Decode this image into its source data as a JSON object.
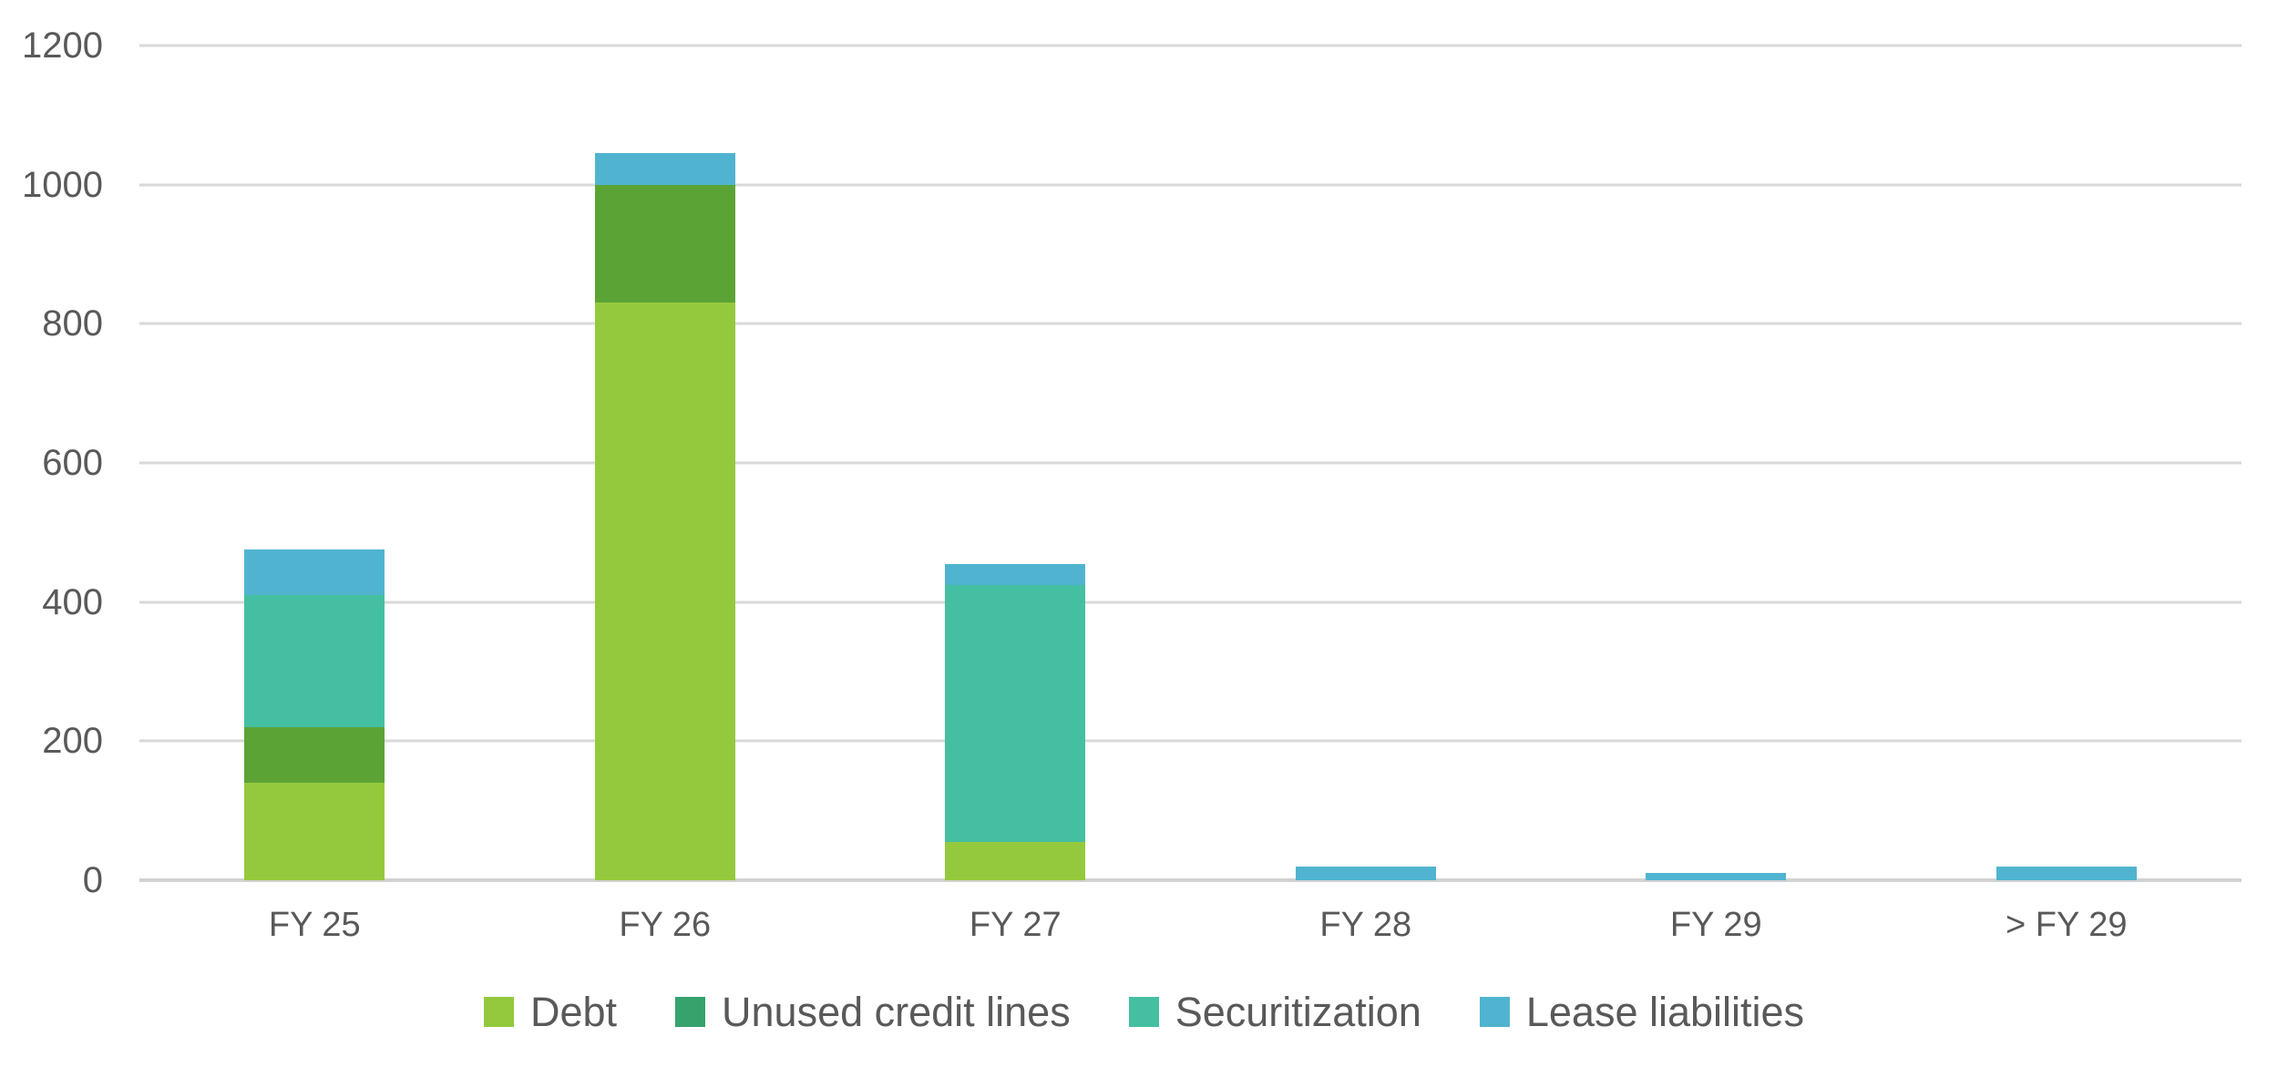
{
  "chart_data": {
    "type": "bar",
    "stacked": true,
    "title": "",
    "xlabel": "",
    "ylabel": "",
    "categories": [
      "FY 25",
      "FY 26",
      "FY 27",
      "FY 28",
      "FY 29",
      "> FY 29"
    ],
    "series": [
      {
        "name": "Debt",
        "color": "#95C93D",
        "legend_color": "#95C93D",
        "values": [
          140,
          830,
          55,
          0,
          0,
          0
        ]
      },
      {
        "name": "Unused credit lines",
        "color": "#5CA336",
        "legend_color": "#36A26C",
        "values": [
          80,
          170,
          0,
          0,
          0,
          0
        ]
      },
      {
        "name": "Securitization",
        "color": "#45BFA1",
        "legend_color": "#45BFA1",
        "values": [
          190,
          0,
          370,
          0,
          0,
          0
        ]
      },
      {
        "name": "Lease liabilities",
        "color": "#50B4D0",
        "legend_color": "#50B4D0",
        "values": [
          65,
          45,
          30,
          20,
          10,
          20
        ]
      }
    ],
    "totals": [
      475,
      1045,
      455,
      20,
      10,
      20
    ],
    "ylim": [
      0,
      1200
    ],
    "yticks": [
      0,
      200,
      400,
      600,
      800,
      1000,
      1200
    ],
    "grid": true,
    "legend_position": "bottom"
  },
  "colors": {
    "gridline": "#D9D9D9",
    "baseline": "#D2D2D2",
    "axis_text": "#595959",
    "background": "#FFFFFF"
  }
}
